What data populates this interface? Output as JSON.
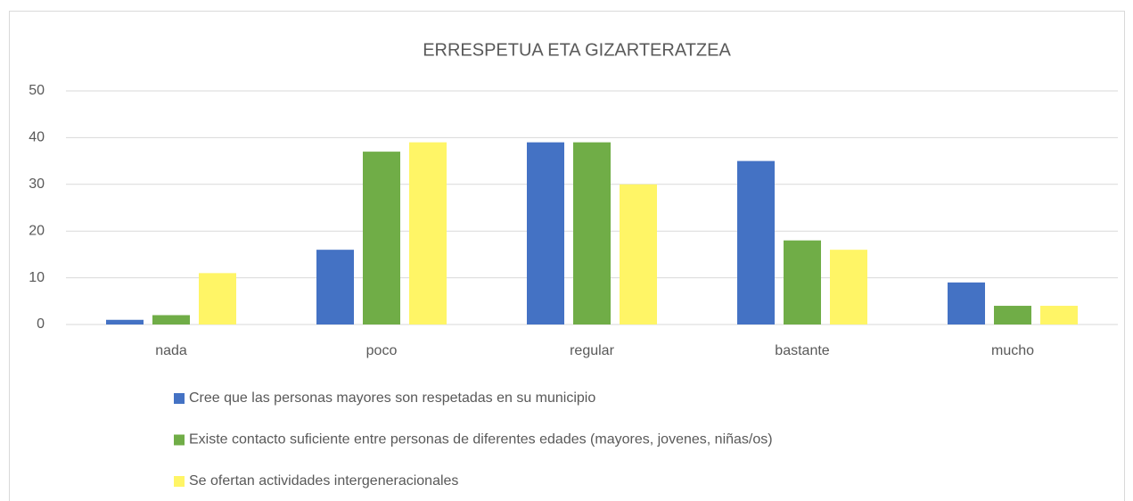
{
  "chart_data": {
    "type": "bar",
    "title": "ERRESPETUA ETA GIZARTERATZEA",
    "categories": [
      "nada",
      "poco",
      "regular",
      "bastante",
      "mucho"
    ],
    "series": [
      {
        "name": "Cree que las personas mayores son respetadas en su municipio",
        "color": "#4472c4",
        "values": [
          1,
          16,
          39,
          35,
          9
        ]
      },
      {
        "name": "Existe contacto suficiente entre personas de diferentes edades (mayores, jovenes, niñas/os)",
        "color": "#70ad47",
        "values": [
          2,
          37,
          39,
          18,
          4
        ]
      },
      {
        "name": "Se ofertan actividades intergeneracionales",
        "color": "#fff566",
        "values": [
          11,
          39,
          30,
          16,
          4
        ]
      }
    ],
    "ylim": [
      0,
      50
    ],
    "yticks": [
      0,
      10,
      20,
      30,
      40,
      50
    ],
    "grid": true,
    "legend": "bottom"
  }
}
